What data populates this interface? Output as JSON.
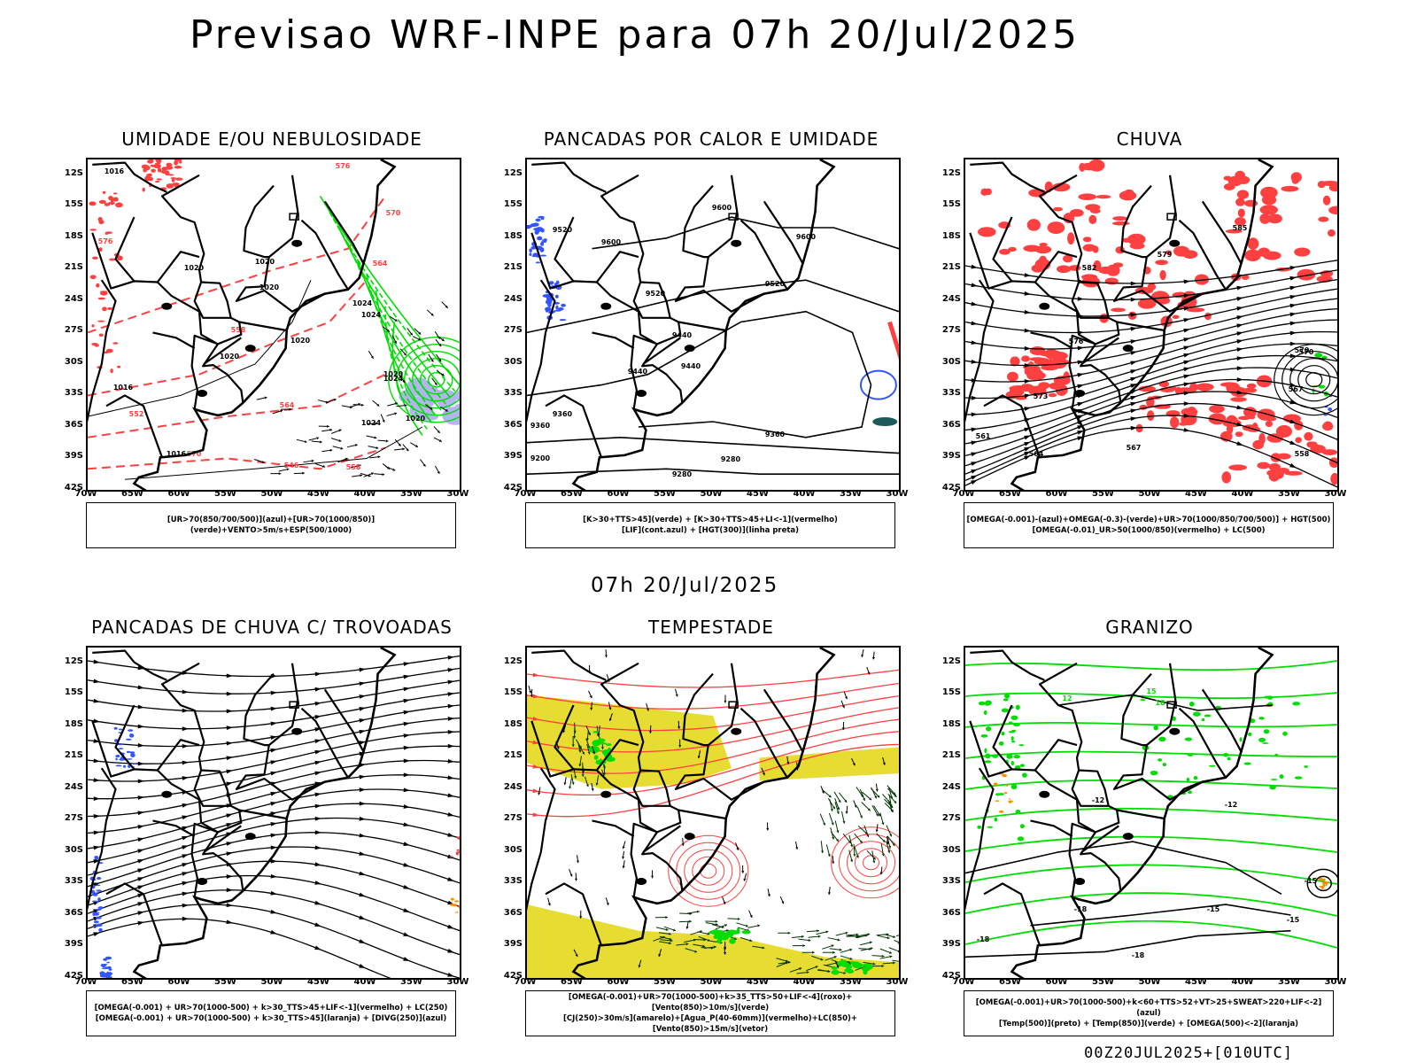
{
  "header": {
    "title": "Previsao WRF-INPE  para 07h 20/Jul/2025",
    "mid_date": "07h 20/Jul/2025",
    "footer": "00Z20JUL2025+[010UTC]"
  },
  "axes": {
    "lat_labels": [
      "12S",
      "15S",
      "18S",
      "21S",
      "24S",
      "27S",
      "30S",
      "33S",
      "36S",
      "39S",
      "42S"
    ],
    "lon_labels": [
      "70W",
      "65W",
      "60W",
      "55W",
      "50W",
      "45W",
      "40W",
      "35W",
      "30W"
    ]
  },
  "panels": [
    {
      "title": "UMIDADE E/OU NEBULOSIDADE",
      "legend": [
        "[UR>70(850/700/500)](azul)+[UR>70(1000/850)](verde)+VENTO>5m/s+ESP(500/1000)"
      ],
      "contours": [
        "1016",
        "1016",
        "1020",
        "1020",
        "1020",
        "1020",
        "1024",
        "1024",
        "1024",
        "1020",
        "1016",
        "1020",
        "1020",
        "1024"
      ],
      "red_labels": [
        "576",
        "570",
        "576",
        "564",
        "558",
        "552",
        "564",
        "570",
        "546",
        "558"
      ]
    },
    {
      "title": "PANCADAS POR CALOR E UMIDADE",
      "legend": [
        "[K>30+TTS>45](verde) + [K>30+TTS>45+LI<-1](vermelho)",
        "[LIF](cont.azul) + [HGT(300)](linha preta)"
      ],
      "contours": [
        "9520",
        "9600",
        "9600",
        "9600",
        "9520",
        "9520",
        "9440",
        "9440",
        "9440",
        "9360",
        "9360",
        "9360",
        "9280",
        "9200",
        "9280"
      ]
    },
    {
      "title": "CHUVA",
      "legend": [
        "[OMEGA(-0.001)-(azul)+OMEGA(-0.3)-(verde)+UR>70(1000/850/700/500)] + HGT(500)",
        "[OMEGA(-0.01)_UR>50(1000/850)(vermelho) + LC(500)"
      ],
      "contours": [
        "585",
        "582",
        "579",
        "576",
        "573",
        "570",
        "567",
        "564",
        "561",
        "558",
        "570",
        "567"
      ]
    },
    {
      "title": "PANCADAS DE CHUVA C/ TROVOADAS",
      "legend": [
        "[OMEGA(-0.001) + UR>70(1000-500) + k>30_TTS>45+LIF<-1](vermelho) + LC(250)",
        "[OMEGA(-0.001) + UR>70(1000-500) + k>30_TTS>45](laranja) + [DIVG(250)](azul)"
      ]
    },
    {
      "title": "TEMPESTADE",
      "legend": [
        "[OMEGA(-0.001)+UR>70(1000-500)+k>35_TTS>50+LIF<-4](roxo)+[Vento(850)>10m/s](verde)",
        "[CJ(250)>30m/s](amarelo)+[Agua_P(40-60mm)](vermelho)+LC(850)+[Vento(850)>15m/s](vetor)"
      ]
    },
    {
      "title": "GRANIZO",
      "legend": [
        "[OMEGA(-0.001)+UR>70(1000-500)+k<60+TTS>52+VT>25+SWEAT>220+LIF<-2](azul)",
        "[Temp(500)](preto) + [Temp(850)](verde) + [OMEGA(500)<-2](laranja)"
      ],
      "contours": [
        "-18",
        "-15",
        "-15",
        "-18",
        "-18",
        "-12",
        "-12",
        "-15",
        "12",
        "15",
        "18"
      ]
    }
  ],
  "colors": {
    "green": "#00dd00",
    "red": "#ff4040",
    "blue": "#3355ff",
    "lavender": "#b4b4f0",
    "yellow": "#e6dc32",
    "orange": "#ff8c00"
  }
}
